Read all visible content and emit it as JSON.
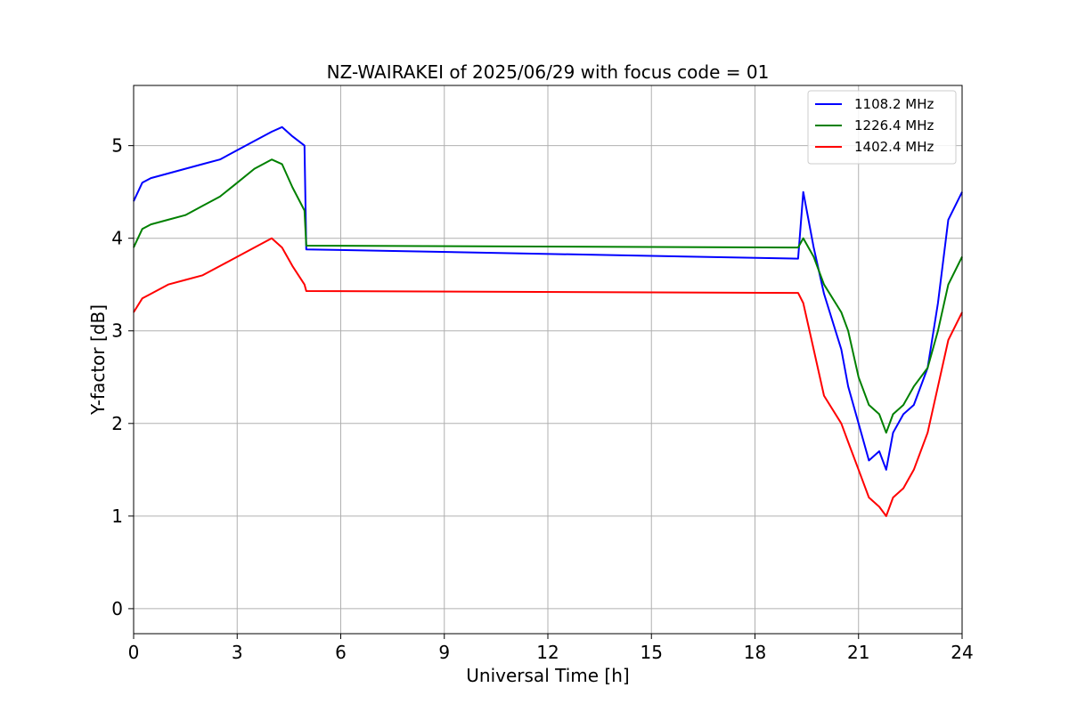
{
  "chart_data": {
    "type": "line",
    "title": "NZ-WAIRAKEI of 2025/06/29 with focus code = 01",
    "xlabel": "Universal Time [h]",
    "ylabel": "Y-factor [dB]",
    "xlim": [
      0,
      24
    ],
    "ylim": [
      -0.27,
      5.65
    ],
    "xticks": [
      0,
      3,
      6,
      9,
      12,
      15,
      18,
      21,
      24
    ],
    "yticks": [
      0,
      1,
      2,
      3,
      4,
      5
    ],
    "grid": true,
    "legend_position": "top-right",
    "series": [
      {
        "name": "1108.2 MHz",
        "color": "#0000ff",
        "x": [
          0.0,
          0.25,
          0.5,
          1.0,
          1.5,
          2.0,
          2.5,
          3.0,
          3.5,
          4.0,
          4.3,
          4.6,
          4.95,
          5.0,
          19.25,
          19.4,
          19.7,
          20.0,
          20.5,
          20.7,
          21.0,
          21.3,
          21.6,
          21.8,
          22.0,
          22.3,
          22.6,
          23.0,
          23.3,
          23.6,
          24.0
        ],
        "y": [
          4.4,
          4.6,
          4.65,
          4.7,
          4.75,
          4.8,
          4.85,
          4.95,
          5.05,
          5.15,
          5.2,
          5.1,
          5.0,
          3.88,
          3.78,
          4.5,
          3.9,
          3.4,
          2.8,
          2.4,
          2.0,
          1.6,
          1.7,
          1.5,
          1.9,
          2.1,
          2.2,
          2.6,
          3.3,
          4.2,
          4.5
        ]
      },
      {
        "name": "1226.4 MHz",
        "color": "#008000",
        "x": [
          0.0,
          0.25,
          0.5,
          1.0,
          1.5,
          2.0,
          2.5,
          3.0,
          3.5,
          4.0,
          4.3,
          4.6,
          4.95,
          5.0,
          19.25,
          19.4,
          19.7,
          20.0,
          20.5,
          20.7,
          21.0,
          21.3,
          21.6,
          21.8,
          22.0,
          22.3,
          22.6,
          23.0,
          23.3,
          23.6,
          24.0
        ],
        "y": [
          3.9,
          4.1,
          4.15,
          4.2,
          4.25,
          4.35,
          4.45,
          4.6,
          4.75,
          4.85,
          4.8,
          4.55,
          4.3,
          3.92,
          3.9,
          4.0,
          3.8,
          3.5,
          3.2,
          3.0,
          2.5,
          2.2,
          2.1,
          1.9,
          2.1,
          2.2,
          2.4,
          2.6,
          3.0,
          3.5,
          3.8
        ]
      },
      {
        "name": "1402.4 MHz",
        "color": "#ff0000",
        "x": [
          0.0,
          0.25,
          0.5,
          1.0,
          1.5,
          2.0,
          2.5,
          3.0,
          3.5,
          4.0,
          4.3,
          4.6,
          4.95,
          5.0,
          19.25,
          19.4,
          19.7,
          20.0,
          20.5,
          20.7,
          21.0,
          21.3,
          21.6,
          21.8,
          22.0,
          22.3,
          22.6,
          23.0,
          23.3,
          23.6,
          24.0
        ],
        "y": [
          3.2,
          3.35,
          3.4,
          3.5,
          3.55,
          3.6,
          3.7,
          3.8,
          3.9,
          4.0,
          3.9,
          3.7,
          3.5,
          3.43,
          3.41,
          3.3,
          2.8,
          2.3,
          2.0,
          1.8,
          1.5,
          1.2,
          1.1,
          1.0,
          1.2,
          1.3,
          1.5,
          1.9,
          2.4,
          2.9,
          3.2
        ]
      }
    ]
  }
}
